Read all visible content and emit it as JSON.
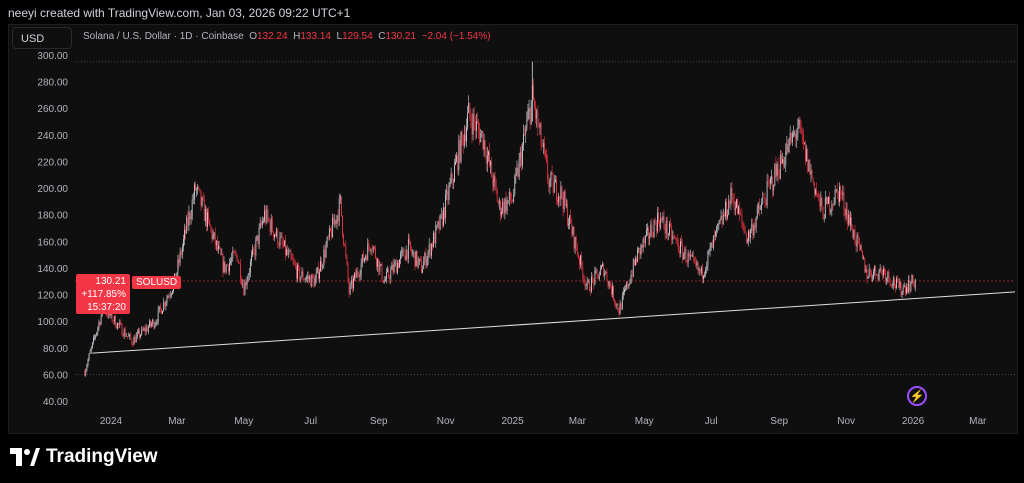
{
  "credit": "neeyi created with TradingView.com, Jan 03, 2026 09:22 UTC+1",
  "currency_button": "USD",
  "legend": {
    "symbol": "Solana / U.S. Dollar · 1D · Coinbase",
    "o_label": "O",
    "o": "132.24",
    "h_label": "H",
    "h": "133.14",
    "l_label": "L",
    "l": "129.54",
    "c_label": "C",
    "c": "130.21",
    "change": "−2.04 (−1.54%)"
  },
  "last_price": {
    "price": "130.21",
    "change_pct": "+117.85%",
    "countdown": "15:37:20",
    "symbol": "SOLUSD"
  },
  "brand": "TradingView",
  "colors": {
    "up": "#d1d4dc",
    "down": "#f23645",
    "background": "#0f0f0f",
    "trendline": "#e0e0e0",
    "accent": "#9c4dff"
  },
  "chart_data": {
    "type": "candlestick",
    "yticks": [
      "300.00",
      "280.00",
      "260.00",
      "240.00",
      "220.00",
      "200.00",
      "180.00",
      "160.00",
      "140.00",
      "120.00",
      "100.00",
      "80.00",
      "60.00",
      "40.00"
    ],
    "xticks": [
      {
        "label": "2024",
        "date": "2024-01-01"
      },
      {
        "label": "Mar",
        "date": "2024-03-01"
      },
      {
        "label": "May",
        "date": "2024-05-01"
      },
      {
        "label": "Jul",
        "date": "2024-07-01"
      },
      {
        "label": "Sep",
        "date": "2024-09-01"
      },
      {
        "label": "Nov",
        "date": "2024-11-01"
      },
      {
        "label": "2025",
        "date": "2025-01-01"
      },
      {
        "label": "Mar",
        "date": "2025-03-01"
      },
      {
        "label": "May",
        "date": "2025-05-01"
      },
      {
        "label": "Jul",
        "date": "2025-07-01"
      },
      {
        "label": "Sep",
        "date": "2025-09-01"
      },
      {
        "label": "Nov",
        "date": "2025-11-01"
      },
      {
        "label": "2026",
        "date": "2026-01-01"
      },
      {
        "label": "Mar",
        "date": "2026-03-01"
      }
    ],
    "ylim": [
      40,
      300
    ],
    "price_path": [
      [
        "2023-12-08",
        62
      ],
      [
        "2023-12-25",
        110
      ],
      [
        "2024-01-20",
        85
      ],
      [
        "2024-02-10",
        100
      ],
      [
        "2024-02-28",
        130
      ],
      [
        "2024-03-18",
        200
      ],
      [
        "2024-04-13",
        140
      ],
      [
        "2024-04-25",
        150
      ],
      [
        "2024-05-01",
        125
      ],
      [
        "2024-05-20",
        180
      ],
      [
        "2024-06-20",
        135
      ],
      [
        "2024-07-05",
        130
      ],
      [
        "2024-07-28",
        188
      ],
      [
        "2024-08-05",
        122
      ],
      [
        "2024-08-25",
        160
      ],
      [
        "2024-09-06",
        130
      ],
      [
        "2024-09-28",
        155
      ],
      [
        "2024-10-10",
        140
      ],
      [
        "2024-10-28",
        175
      ],
      [
        "2024-11-22",
        255
      ],
      [
        "2024-12-05",
        238
      ],
      [
        "2024-12-20",
        185
      ],
      [
        "2025-01-01",
        192
      ],
      [
        "2025-01-19",
        268
      ],
      [
        "2025-02-03",
        205
      ],
      [
        "2025-02-15",
        195
      ],
      [
        "2025-03-10",
        125
      ],
      [
        "2025-03-25",
        140
      ],
      [
        "2025-04-08",
        108
      ],
      [
        "2025-04-25",
        150
      ],
      [
        "2025-05-14",
        178
      ],
      [
        "2025-06-05",
        152
      ],
      [
        "2025-06-22",
        135
      ],
      [
        "2025-07-20",
        195
      ],
      [
        "2025-08-03",
        162
      ],
      [
        "2025-08-28",
        210
      ],
      [
        "2025-09-18",
        245
      ],
      [
        "2025-10-10",
        182
      ],
      [
        "2025-10-26",
        198
      ],
      [
        "2025-11-20",
        136
      ],
      [
        "2025-12-05",
        138
      ],
      [
        "2025-12-20",
        124
      ],
      [
        "2026-01-03",
        130.21
      ]
    ],
    "trendline": [
      [
        "2023-12-15",
        76
      ],
      [
        "2026-03-31",
        122
      ]
    ],
    "extremes": {
      "high": 295,
      "low": 96
    }
  }
}
